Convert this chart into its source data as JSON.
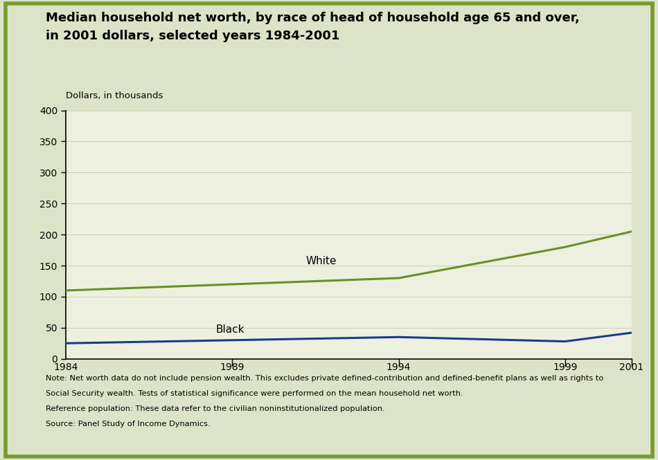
{
  "title_line1": "Median household net worth, by race of head of household age 65 and over,",
  "title_line2": "in 2001 dollars, selected years 1984-2001",
  "ylabel": "Dollars, in thousands",
  "years_white": [
    1984,
    1989,
    1994,
    1999,
    2001
  ],
  "values_white": [
    110,
    120,
    130,
    180,
    205
  ],
  "years_black": [
    1984,
    1989,
    1994,
    1999,
    2001
  ],
  "values_black": [
    25,
    30,
    35,
    28,
    42
  ],
  "white_color": "#6b8e23",
  "black_color": "#1a3a8f",
  "white_label": "White",
  "black_label": "Black",
  "bg_color": "#dde3c8",
  "plot_bg_color": "#edf0de",
  "border_color": "#7a9a2e",
  "ylim": [
    0,
    400
  ],
  "yticks": [
    0,
    50,
    100,
    150,
    200,
    250,
    300,
    350,
    400
  ],
  "xticks": [
    1984,
    1989,
    1994,
    1999,
    2001
  ],
  "xlim": [
    1984,
    2001
  ],
  "note_line1": "Note: Net worth data do not include pension wealth. This excludes private defined-contribution and defined-benefit plans as well as rights to",
  "note_line2": "Social Security wealth. Tests of statistical significance were performed on the mean household net worth.",
  "note_line3": "Reference population: These data refer to the civilian noninstitutionalized population.",
  "note_line4": "Source: Panel Study of Income Dynamics.",
  "line_width": 2.2
}
